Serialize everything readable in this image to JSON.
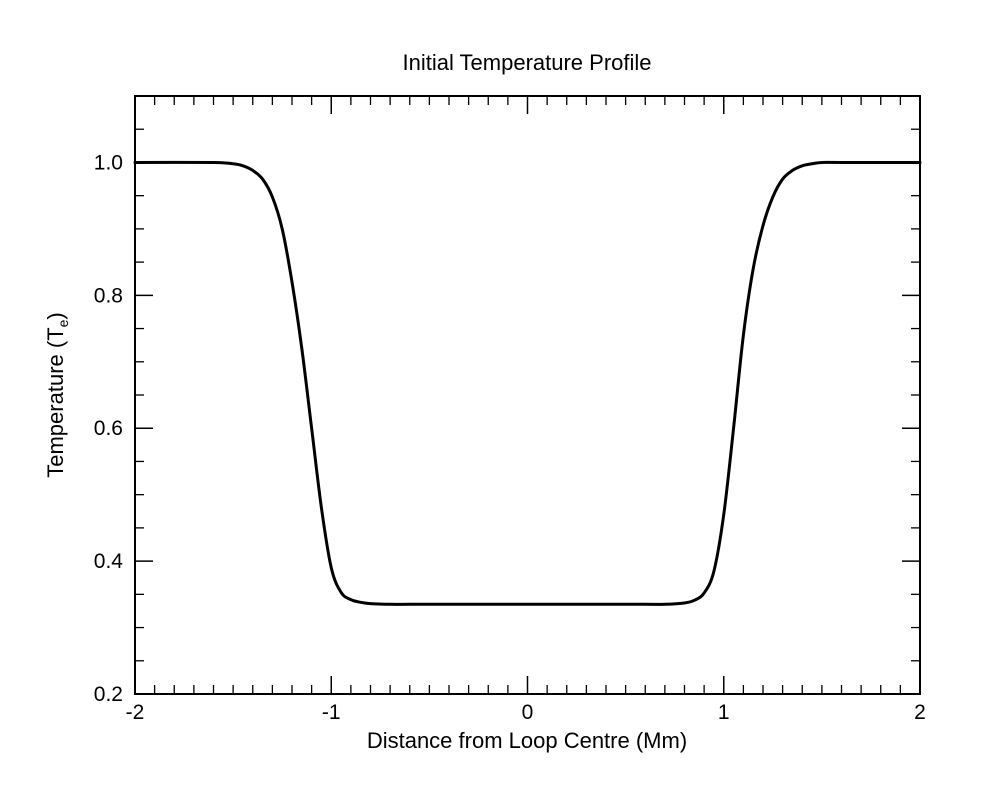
{
  "chart_data": {
    "type": "line",
    "title": "Initial Temperature Profile",
    "xlabel": "Distance from Loop Centre (Mm)",
    "ylabel": "Temperature (T",
    "ylabel_subscript": "e",
    "ylabel_close": ")",
    "xlim": [
      -2,
      2
    ],
    "ylim": [
      0.2,
      1.1
    ],
    "x_ticks": [
      -2,
      -1,
      0,
      1,
      2
    ],
    "x_tick_labels": [
      "-2",
      "-1",
      "0",
      "1",
      "2"
    ],
    "y_ticks": [
      0.2,
      0.4,
      0.6,
      0.8,
      1.0
    ],
    "y_tick_labels": [
      "0.2",
      "0.4",
      "0.6",
      "0.8",
      "1.0"
    ],
    "x_minor_step": 0.1,
    "y_minor_step": 0.05,
    "grid": false,
    "series": [
      {
        "color": "#000000",
        "x": [
          -2.0,
          -1.6,
          -1.5,
          -1.45,
          -1.4,
          -1.35,
          -1.3,
          -1.25,
          -1.2,
          -1.15,
          -1.1,
          -1.05,
          -1.0,
          -0.95,
          -0.9,
          -0.85,
          -0.8,
          -0.7,
          -0.6,
          -0.4,
          0.0,
          0.4,
          0.6,
          0.7,
          0.8,
          0.85,
          0.9,
          0.95,
          1.0,
          1.05,
          1.1,
          1.15,
          1.2,
          1.25,
          1.3,
          1.35,
          1.4,
          1.45,
          1.5,
          1.6,
          2.0
        ],
        "y": [
          1.0,
          1.0,
          0.998,
          0.995,
          0.988,
          0.975,
          0.948,
          0.9,
          0.82,
          0.72,
          0.6,
          0.48,
          0.39,
          0.353,
          0.342,
          0.338,
          0.336,
          0.335,
          0.335,
          0.335,
          0.335,
          0.335,
          0.335,
          0.335,
          0.337,
          0.341,
          0.352,
          0.385,
          0.47,
          0.6,
          0.74,
          0.84,
          0.905,
          0.948,
          0.975,
          0.988,
          0.995,
          0.998,
          1.0,
          1.0,
          1.0
        ]
      }
    ]
  }
}
